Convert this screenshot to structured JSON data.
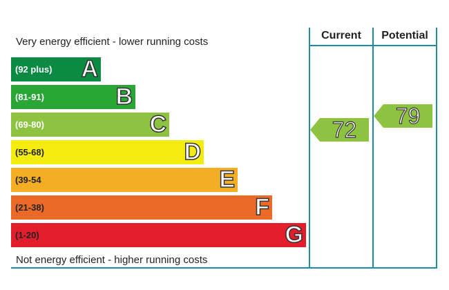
{
  "chart_data": {
    "type": "bar",
    "header": {
      "current_label": "Current",
      "potential_label": "Potential"
    },
    "top_caption": "Very energy efficient - lower running costs",
    "bottom_caption": "Not energy efficient - higher running costs",
    "bands": [
      {
        "letter": "A",
        "range": "(92 plus)",
        "min": 92,
        "max": 100,
        "color": "#0a8a43",
        "text_dark": false
      },
      {
        "letter": "B",
        "range": "(81-91)",
        "min": 81,
        "max": 91,
        "color": "#2aa637",
        "text_dark": false
      },
      {
        "letter": "C",
        "range": "(69-80)",
        "min": 69,
        "max": 80,
        "color": "#8dc340",
        "text_dark": false
      },
      {
        "letter": "D",
        "range": "(55-68)",
        "min": 55,
        "max": 68,
        "color": "#f4eb0f",
        "text_dark": true
      },
      {
        "letter": "E",
        "range": "(39-54",
        "min": 39,
        "max": 54,
        "color": "#f3ae25",
        "text_dark": true
      },
      {
        "letter": "F",
        "range": "(21-38)",
        "min": 21,
        "max": 38,
        "color": "#ec6a27",
        "text_dark": true
      },
      {
        "letter": "G",
        "range": "(1-20)",
        "min": 1,
        "max": 20,
        "color": "#e21e2d",
        "text_dark": true
      }
    ],
    "current": {
      "value": 72,
      "color": "#8dc340"
    },
    "potential": {
      "value": 79,
      "color": "#8dc340"
    }
  }
}
